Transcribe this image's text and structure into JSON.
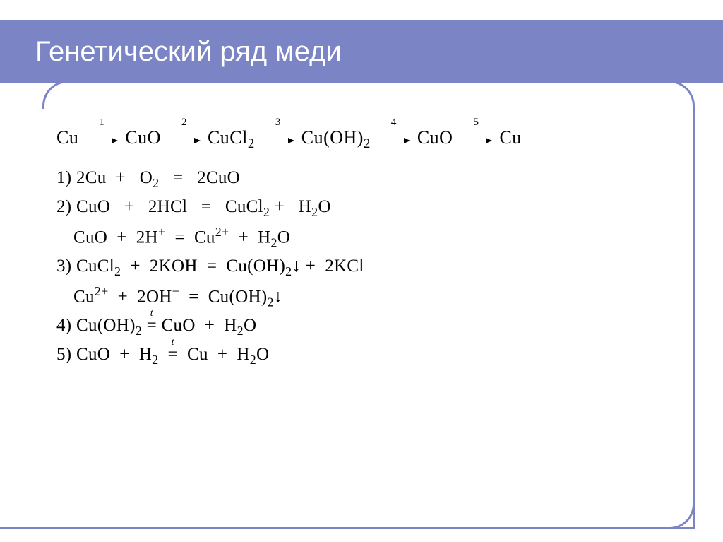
{
  "slide": {
    "title": "Генетический ряд меди",
    "theme": {
      "accent_color": "#7b84c4",
      "title_color": "#ffffff",
      "text_color": "#000000",
      "background_color": "#ffffff",
      "title_fontsize": 40,
      "equation_fontsize": 25,
      "chain_fontsize": 26
    },
    "chain": {
      "species": [
        "Cu",
        "CuO",
        "CuCl₂",
        "Cu(OH)₂",
        "CuO",
        "Cu"
      ],
      "step_labels": [
        "1",
        "2",
        "3",
        "4",
        "5"
      ]
    },
    "equations": [
      {
        "n": "1)",
        "text": "2Cu  +   O₂   =   2CuO"
      },
      {
        "n": "2)",
        "text": "CuO   +   2HCl   =   CuCl₂ +   H₂O"
      },
      {
        "n": "",
        "text": "CuO  +  2H⁺  =  Cu²⁺  +  H₂O",
        "ionic": true
      },
      {
        "n": "3)",
        "text": "CuCl₂  +  2KOH  =  Cu(OH)₂↓ +  2KCl"
      },
      {
        "n": "",
        "text": "Cu²⁺  +  2OH⁻  =  Cu(OH)₂↓",
        "ionic": true
      },
      {
        "n": "4)",
        "text": "Cu(OH)₂ =ᵗ CuO  +  H₂O"
      },
      {
        "n": "5)",
        "text": "CuO  +  H₂  =ᵗ  Cu  +  H₂O"
      }
    ]
  }
}
